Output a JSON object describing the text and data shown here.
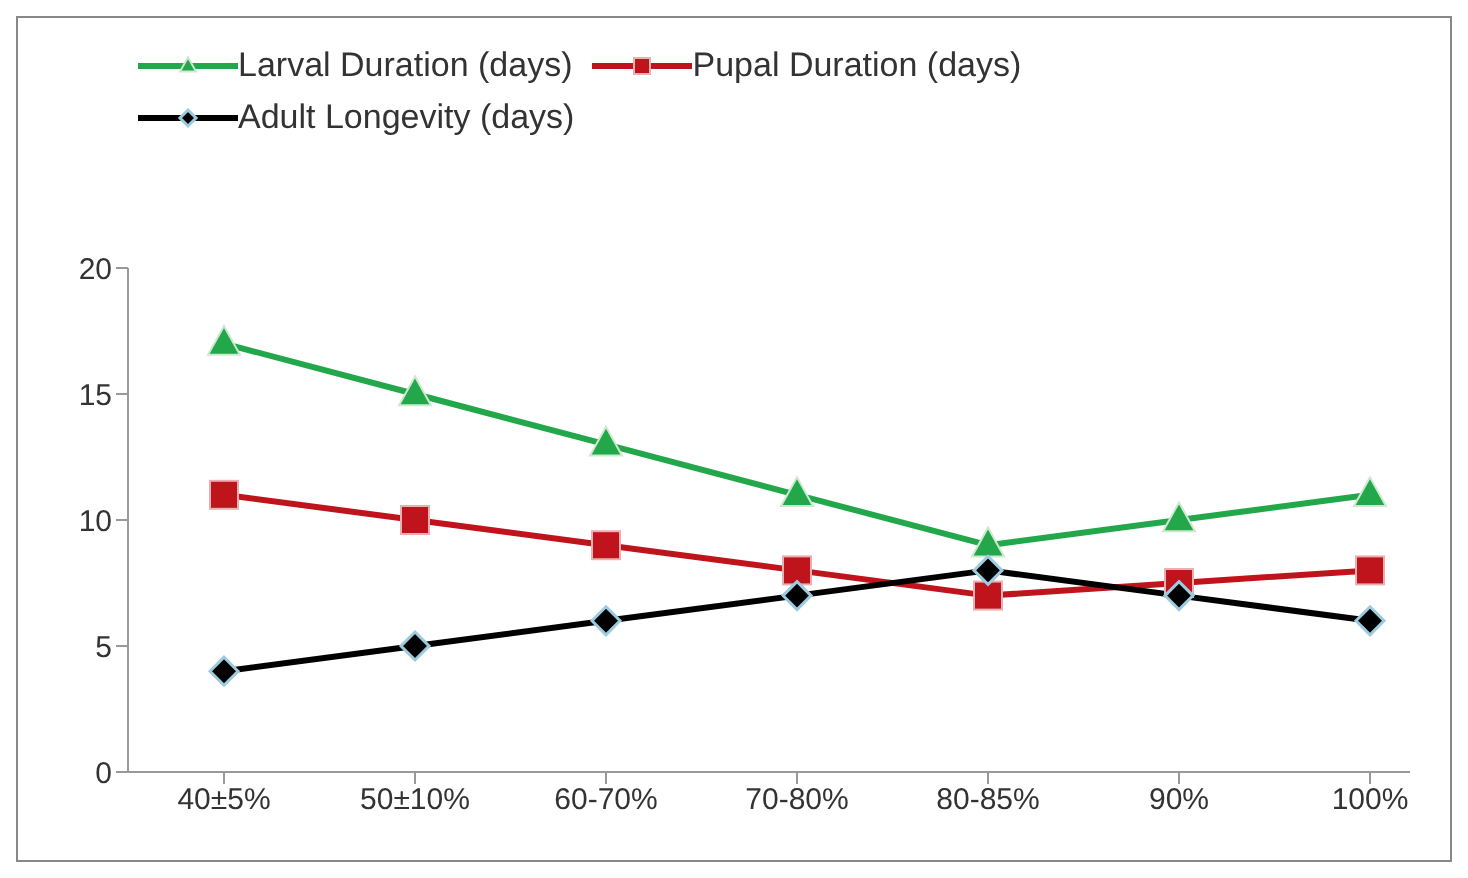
{
  "chart_data": {
    "type": "line",
    "categories": [
      "40±5%",
      "50±10%",
      "60-70%",
      "70-80%",
      "80-85%",
      "90%",
      "100%"
    ],
    "series": [
      {
        "name": "Larval Duration (days)",
        "color": "#22a84a",
        "marker": "triangle",
        "values": [
          17,
          15,
          13,
          11,
          9,
          10,
          11
        ]
      },
      {
        "name": "Pupal Duration (days)",
        "color": "#c0141c",
        "marker": "square",
        "values": [
          11,
          10,
          9,
          8,
          7,
          7.5,
          8
        ]
      },
      {
        "name": "Adult Longevity (days)",
        "color": "#000000",
        "marker": "diamond",
        "values": [
          4,
          5,
          6,
          7,
          8,
          7,
          6
        ]
      }
    ],
    "ylim": [
      0,
      20
    ],
    "yticks": [
      0,
      5,
      10,
      15,
      20
    ],
    "grid": false,
    "legend": "top left"
  }
}
